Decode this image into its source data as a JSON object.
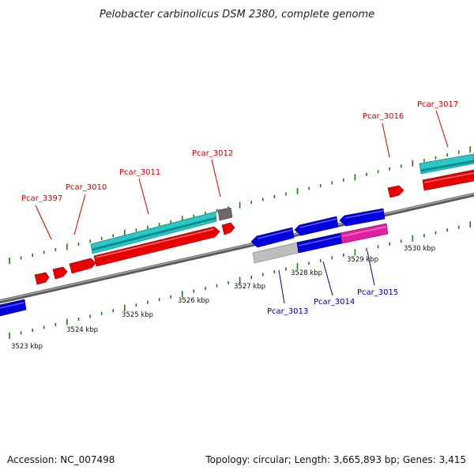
{
  "title": "Pelobacter carbinolicus DSM 2380, complete genome",
  "footer": {
    "accession": "Accession: NC_007498",
    "summary": "Topology: circular; Length: 3,665,893 bp; Genes: 3,415"
  },
  "colors": {
    "backbone": "#808080",
    "ticks": "#1a7a1a",
    "forward_label": "#cc0000",
    "reverse_label": "#00008b",
    "cds_red": "#e60000",
    "cds_cyan": "#28c8c8",
    "cds_blue": "#0000dd",
    "cds_magenta": "#e020a0",
    "cds_gray": "#bdbdbd",
    "cds_dark": "#666666"
  },
  "axis": {
    "unit": "kbp",
    "labeled_ticks_kbp": [
      3523,
      3524,
      3525,
      3526,
      3527,
      3528,
      3529,
      3530
    ],
    "tick_labels": [
      "3523 kbp",
      "3524 kbp",
      "3525 kbp",
      "3526 kbp",
      "3527 kbp",
      "3528 kbp",
      "3529 kbp",
      "3530 kbp"
    ]
  },
  "forward_labels": [
    {
      "id": "Pcar_3397",
      "text": "Pcar_3397"
    },
    {
      "id": "Pcar_3010",
      "text": "Pcar_3010"
    },
    {
      "id": "Pcar_3011",
      "text": "Pcar_3011"
    },
    {
      "id": "Pcar_3012",
      "text": "Pcar_3012"
    },
    {
      "id": "Pcar_3016",
      "text": "Pcar_3016"
    },
    {
      "id": "Pcar_3017",
      "text": "Pcar_3017"
    }
  ],
  "reverse_labels": [
    {
      "id": "Pcar_3013",
      "text": "Pcar_3013"
    },
    {
      "id": "Pcar_3014",
      "text": "Pcar_3014"
    },
    {
      "id": "Pcar_3015",
      "text": "Pcar_3015"
    }
  ]
}
